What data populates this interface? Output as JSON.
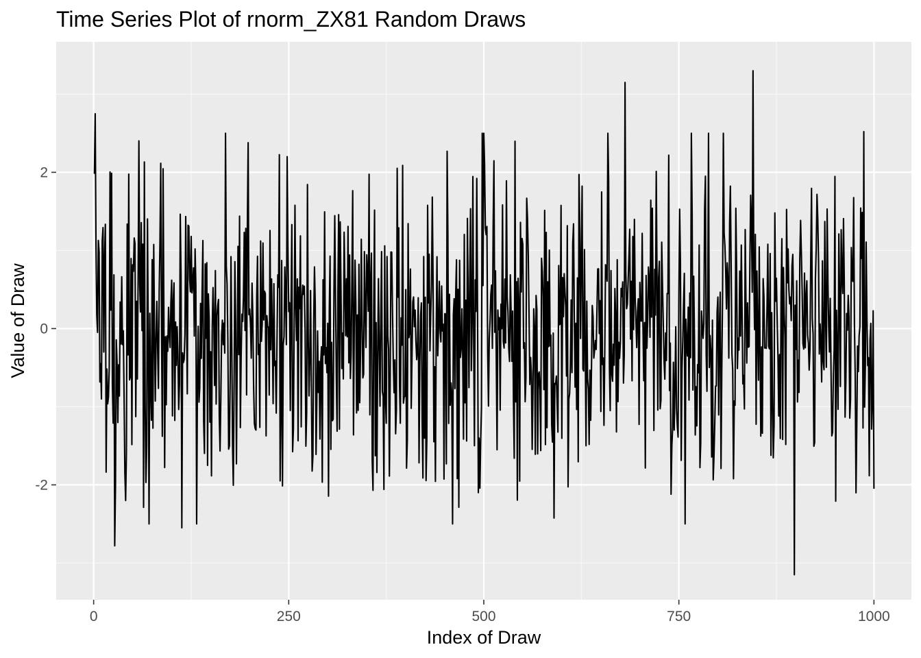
{
  "chart_data": {
    "type": "line",
    "title": "Time Series Plot of rnorm_ZX81 Random Draws",
    "xlabel": "Index of Draw",
    "ylabel": "Value of Draw",
    "xlim": [
      -48,
      1048
    ],
    "ylim": [
      -3.47,
      3.67
    ],
    "x_ticks": [
      0,
      250,
      500,
      750,
      1000
    ],
    "x_tick_labels": [
      "0",
      "250",
      "500",
      "750",
      "1000"
    ],
    "y_ticks": [
      -2,
      0,
      2
    ],
    "y_tick_labels": [
      "-2",
      "0",
      "2"
    ],
    "grid": true,
    "legend": "none",
    "n_points": 1000,
    "seed": 81,
    "highlights": [
      {
        "x": 1,
        "y": 1.98
      },
      {
        "x": 2,
        "y": 2.75
      },
      {
        "x": 27,
        "y": -2.78
      },
      {
        "x": 113,
        "y": -2.55
      },
      {
        "x": 681,
        "y": 3.15
      },
      {
        "x": 845,
        "y": 3.3
      },
      {
        "x": 898,
        "y": -3.15
      },
      {
        "x": 987,
        "y": 2.52
      },
      {
        "x": 1000,
        "y": -2.05
      }
    ],
    "colors": {
      "panel": "#ebebeb",
      "grid_major": "#ffffff",
      "grid_minor": "#f7f7f7",
      "line": "#000000",
      "tick": "#333333"
    }
  }
}
